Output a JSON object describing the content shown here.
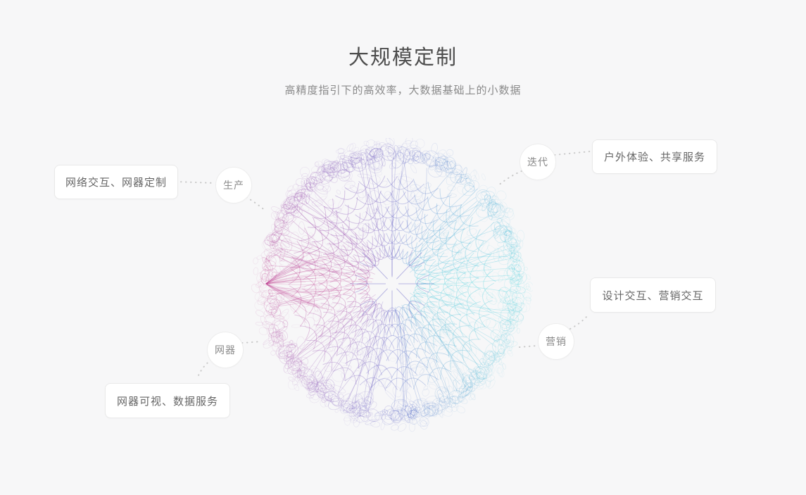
{
  "page": {
    "background": "#f7f7f8",
    "title": "大规模定制",
    "subtitle": "高精度指引下的高效率，大数据基础上的小数据"
  },
  "diagram": {
    "nodes": [
      {
        "id": "production",
        "label": "生产"
      },
      {
        "id": "iteration",
        "label": "迭代"
      },
      {
        "id": "device",
        "label": "网器"
      },
      {
        "id": "marketing",
        "label": "营销"
      }
    ],
    "cards": [
      {
        "id": "network-interaction",
        "label": "网络交互、网器定制"
      },
      {
        "id": "outdoor-experience",
        "label": "户外体验、共享服务"
      },
      {
        "id": "design-interaction",
        "label": "设计交互、营销交互"
      },
      {
        "id": "device-visual",
        "label": "网器可视、数据服务"
      }
    ],
    "connector_color": "#c9c9c9",
    "sphere_colors": {
      "right": "#3fd2dc",
      "bottom_right": "#52b9d8",
      "bottom": "#5a62c8",
      "bottom_left": "#9b59b6",
      "left": "#c23a8c",
      "top_left": "#8e44ad",
      "top": "#5b54c0",
      "top_right": "#4aa8d8",
      "core": "#5b54c0"
    }
  }
}
